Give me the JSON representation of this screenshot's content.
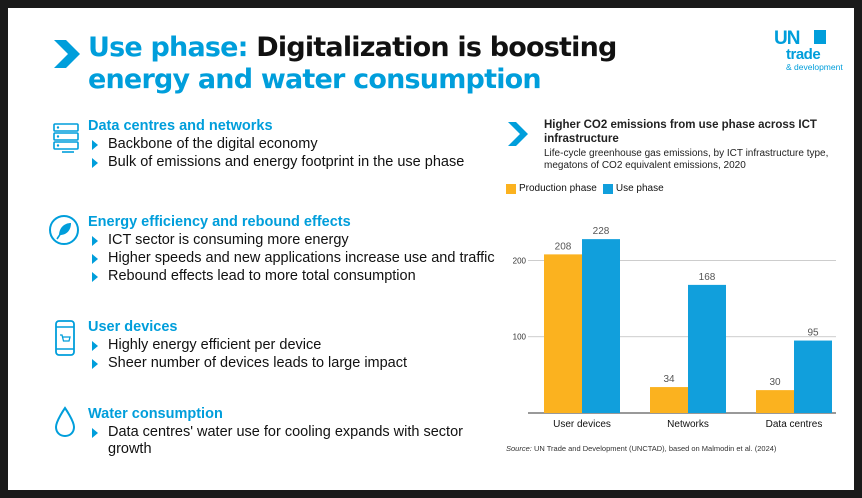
{
  "title": {
    "part1": "Use phase:",
    "part2": " Digitalization is boosting",
    "part3": "energy and water consumption"
  },
  "logo": {
    "un": "UN",
    "trade": "trade",
    "dev": "& development"
  },
  "sections": [
    {
      "title": "Data centres and networks",
      "icon": "server-icon",
      "bullets": [
        "Backbone of the digital economy",
        "Bulk of emissions and energy footprint in the use phase"
      ]
    },
    {
      "title": "Energy efficiency and rebound effects",
      "icon": "eco-plug-icon",
      "bullets": [
        "ICT sector is consuming more energy",
        "Higher speeds and new applications increase use and traffic",
        "Rebound effects lead to more total consumption"
      ]
    },
    {
      "title": "User devices",
      "icon": "smartphone-icon",
      "bullets": [
        "Highly energy efficient per device",
        "Sheer number of devices leads to large impact"
      ]
    },
    {
      "title": "Water consumption",
      "icon": "water-drop-icon",
      "bullets": [
        "Data centres' water use for cooling expands with sector growth"
      ]
    }
  ],
  "chart_data": {
    "type": "bar",
    "title": "Higher CO2 emissions from use phase across ICT infrastructure",
    "subtitle": "Life-cycle greenhouse gas emissions, by ICT infrastructure type, megatons of CO2 equivalent emissions, 2020",
    "categories": [
      "User devices",
      "Networks",
      "Data centres"
    ],
    "series": [
      {
        "name": "Production phase",
        "values": [
          208,
          34,
          30
        ]
      },
      {
        "name": "Use phase",
        "values": [
          228,
          168,
          95
        ]
      }
    ],
    "yticks": [
      100,
      200
    ],
    "ylim": [
      0,
      250
    ],
    "colors": {
      "Production phase": "#fbb21f",
      "Use phase": "#119fdc"
    },
    "source_label": "Source:",
    "source": " UN Trade and Development (UNCTAD), based on Malmodin et al. (2024)"
  }
}
